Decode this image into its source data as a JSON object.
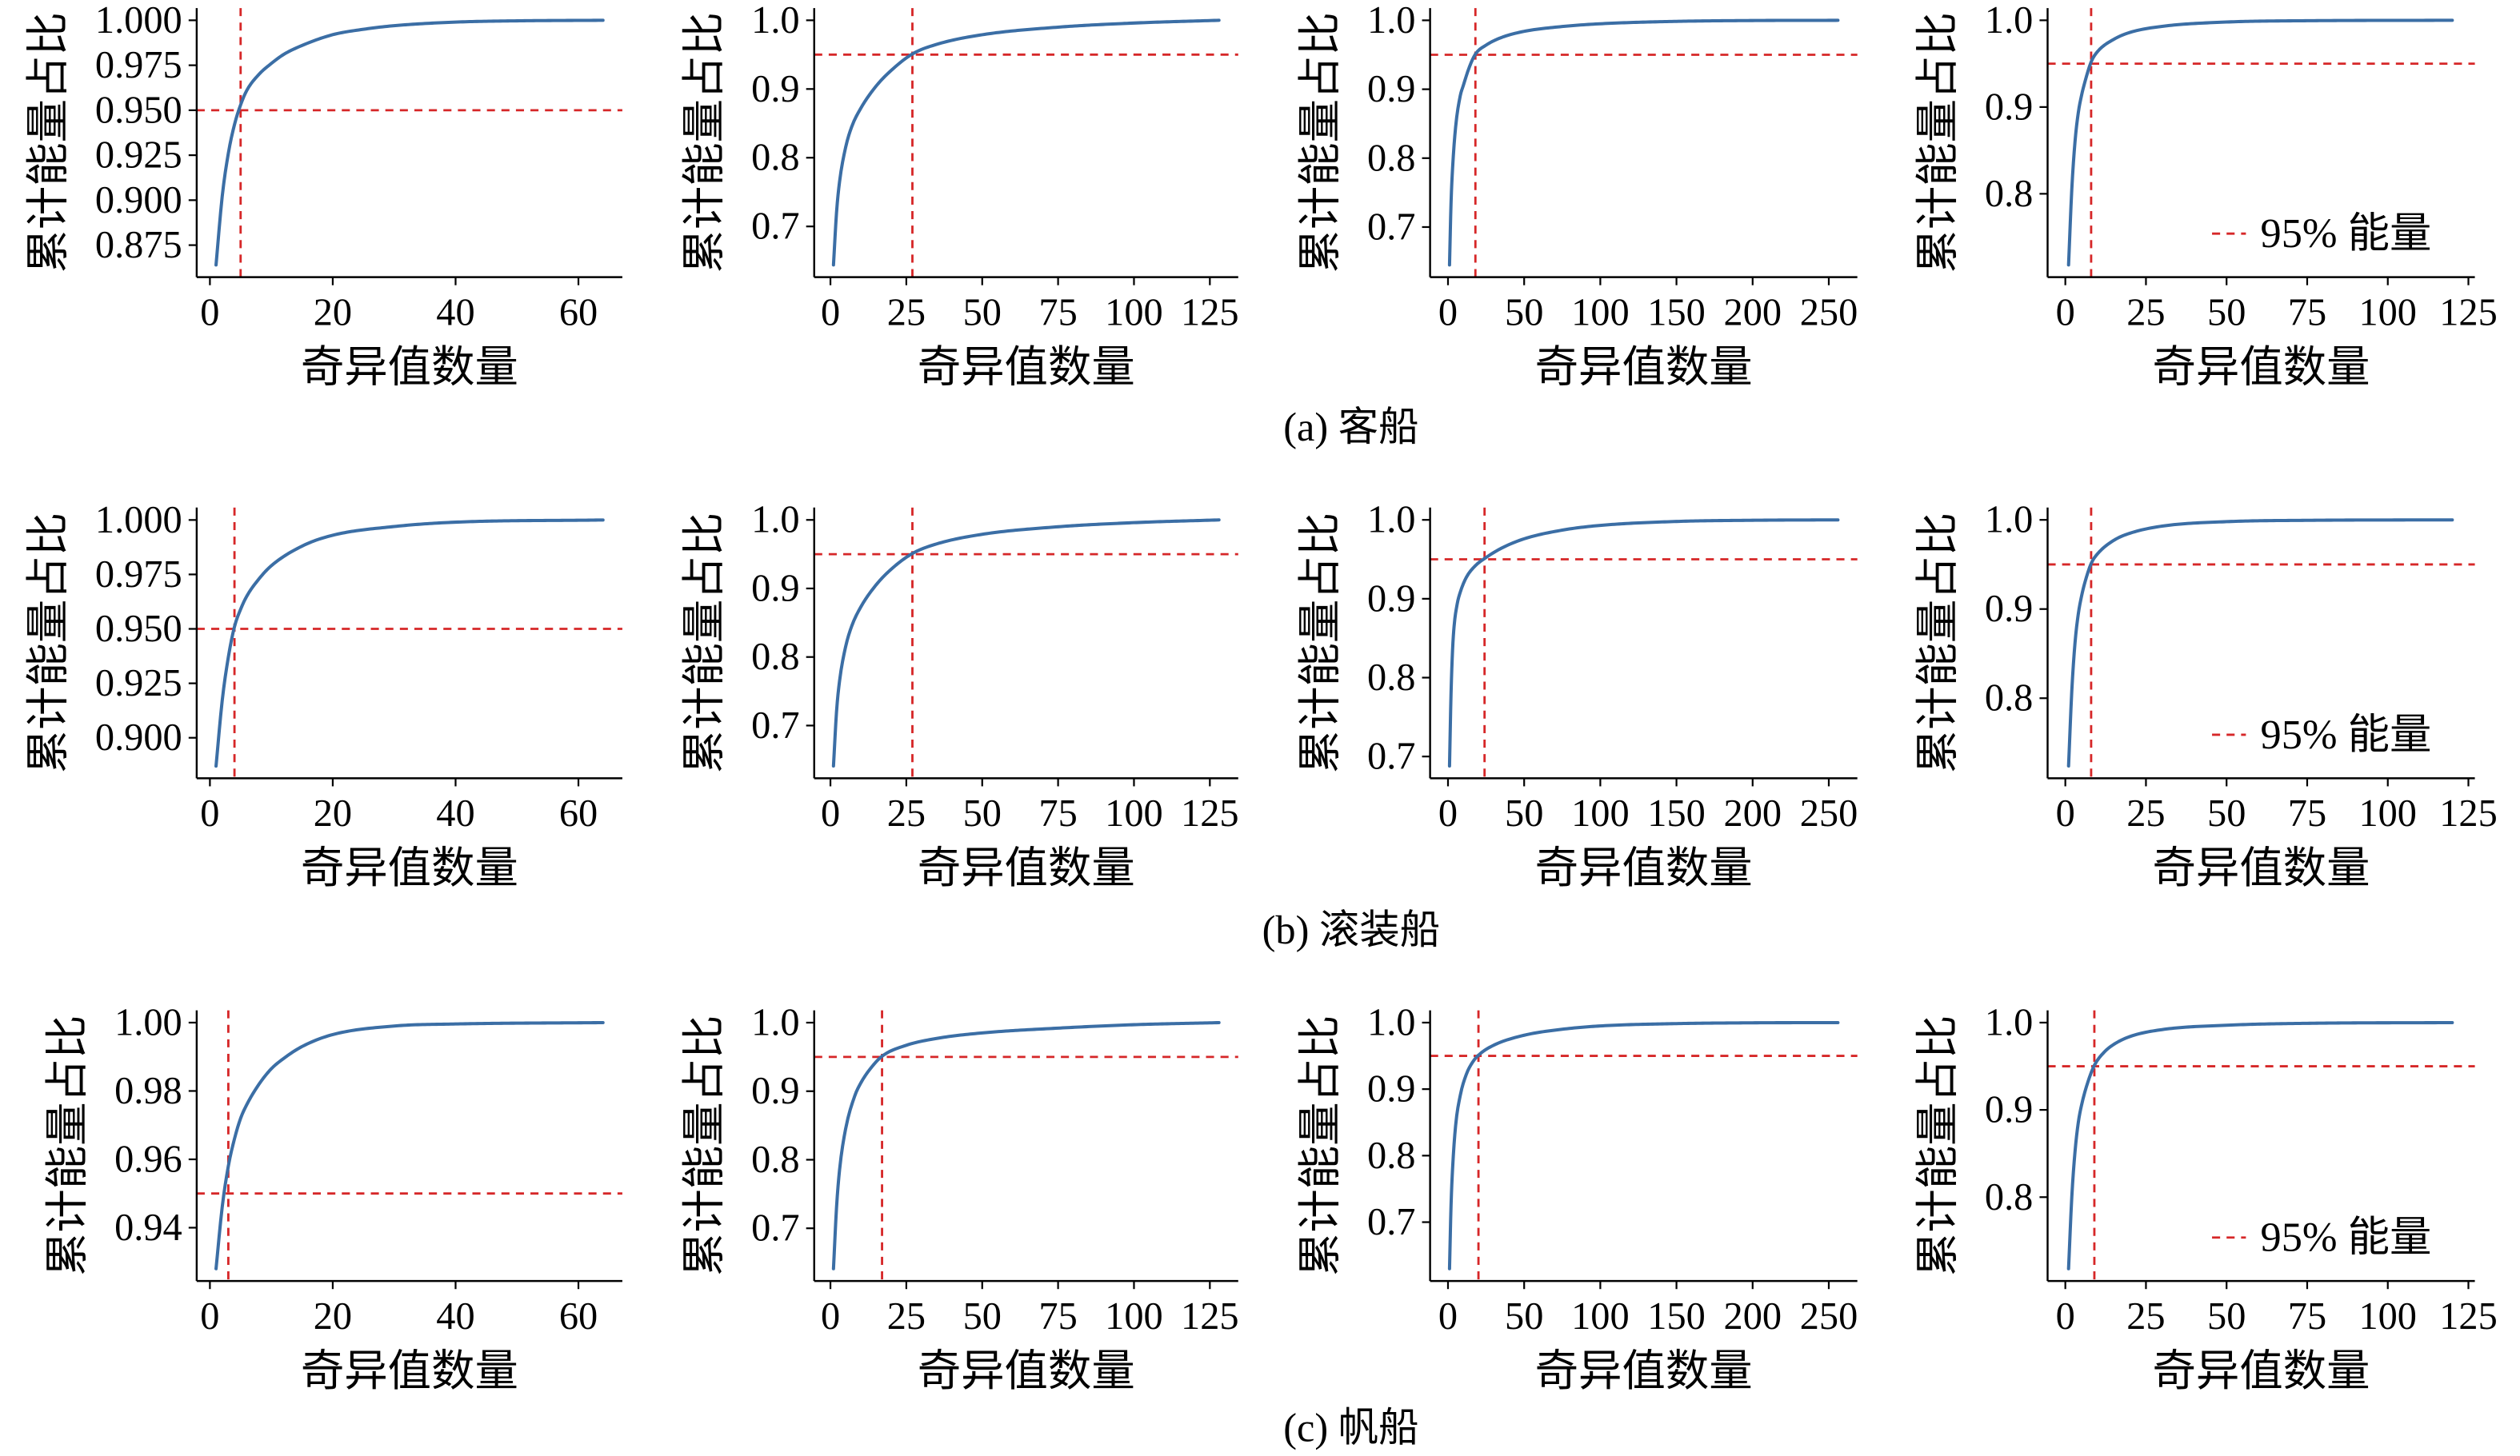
{
  "figure": {
    "captions": [
      "(a) 客船",
      "(b) 滚装船",
      "(c) 帆船"
    ],
    "colors": {
      "curve": "#3b6ea5",
      "reference": "#d62728",
      "axes": "#000000"
    }
  },
  "chart_data": [
    {
      "type": "line",
      "xlabel": "奇异值数量",
      "ylabel": "累计能量占比",
      "xlim": [
        -2.15,
        67.15
      ],
      "ylim": [
        0.8572,
        1.0068
      ],
      "xticks": [
        "0",
        "20",
        "40",
        "60"
      ],
      "yticks": [
        "0.875",
        "0.900",
        "0.925",
        "0.950",
        "0.975",
        "1.000"
      ],
      "series": [
        {
          "x": [
            1,
            2,
            3,
            4,
            5,
            6,
            8,
            10,
            12,
            15,
            20,
            25,
            30,
            40,
            50,
            64
          ],
          "y": [
            0.864,
            0.902,
            0.926,
            0.942,
            0.953,
            0.961,
            0.97,
            0.976,
            0.981,
            0.986,
            0.992,
            0.995,
            0.997,
            0.999,
            0.9997,
            1.0
          ]
        }
      ],
      "reference_lines": {
        "y": 0.95,
        "x": 5
      },
      "grid": false
    },
    {
      "type": "line",
      "xlabel": "奇异值数量",
      "ylabel": "累计能量占比",
      "xlim": [
        -5.35,
        134.35
      ],
      "ylim": [
        0.6262,
        1.0178
      ],
      "xticks": [
        "0",
        "25",
        "50",
        "75",
        "100",
        "125"
      ],
      "yticks": [
        "0.7",
        "0.8",
        "0.9",
        "1.0"
      ],
      "series": [
        {
          "x": [
            1,
            2,
            3,
            5,
            7,
            10,
            15,
            20,
            27,
            35,
            50,
            75,
            100,
            128
          ],
          "y": [
            0.644,
            0.72,
            0.765,
            0.815,
            0.845,
            0.872,
            0.904,
            0.927,
            0.951,
            0.965,
            0.979,
            0.99,
            0.996,
            1.0
          ]
        }
      ],
      "reference_lines": {
        "y": 0.95,
        "x": 27
      },
      "grid": false
    },
    {
      "type": "line",
      "xlabel": "奇异值数量",
      "ylabel": "累计能量占比",
      "xlim": [
        -11.75,
        268.75
      ],
      "ylim": [
        0.6273,
        1.0178
      ],
      "xticks": [
        "0",
        "50",
        "100",
        "150",
        "200",
        "250"
      ],
      "yticks": [
        "0.7",
        "0.8",
        "0.9",
        "1.0"
      ],
      "series": [
        {
          "x": [
            1,
            2,
            3,
            5,
            8,
            10,
            14,
            18,
            25,
            35,
            50,
            75,
            100,
            150,
            200,
            256
          ],
          "y": [
            0.645,
            0.735,
            0.785,
            0.845,
            0.89,
            0.905,
            0.932,
            0.951,
            0.964,
            0.975,
            0.984,
            0.991,
            0.995,
            0.9985,
            0.9997,
            1.0
          ]
        }
      ],
      "reference_lines": {
        "y": 0.95,
        "x": 18
      },
      "grid": false
    },
    {
      "type": "line",
      "xlabel": "奇异值数量",
      "ylabel": "累计能量占比",
      "xlim": [
        -5.5,
        127
      ],
      "ylim": [
        0.7039,
        1.0141
      ],
      "xticks": [
        "0",
        "25",
        "50",
        "75",
        "100",
        "125"
      ],
      "yticks": [
        "0.8",
        "0.9",
        "1.0"
      ],
      "series": [
        {
          "x": [
            1,
            2,
            3,
            4,
            5,
            6,
            8,
            10,
            15,
            20,
            30,
            50,
            75,
            120
          ],
          "y": [
            0.718,
            0.805,
            0.86,
            0.893,
            0.913,
            0.928,
            0.952,
            0.964,
            0.978,
            0.986,
            0.993,
            0.998,
            0.9995,
            1.0
          ]
        }
      ],
      "reference_lines": {
        "y": 0.95,
        "x": 8
      },
      "grid": false,
      "legend": {
        "label": "95% 能量",
        "position": "lower-right"
      }
    },
    {
      "type": "line",
      "xlabel": "奇异值数量",
      "ylabel": "累计能量占比",
      "xlim": [
        -2.15,
        67.15
      ],
      "ylim": [
        0.8814,
        1.0057
      ],
      "xticks": [
        "0",
        "20",
        "40",
        "60"
      ],
      "yticks": [
        "0.900",
        "0.925",
        "0.950",
        "0.975",
        "1.000"
      ],
      "series": [
        {
          "x": [
            1,
            2,
            3,
            4,
            5,
            6,
            8,
            10,
            15,
            20,
            30,
            40,
            64
          ],
          "y": [
            0.887,
            0.917,
            0.937,
            0.951,
            0.959,
            0.965,
            0.973,
            0.979,
            0.988,
            0.993,
            0.997,
            0.999,
            1.0
          ]
        }
      ],
      "reference_lines": {
        "y": 0.95,
        "x": 4
      },
      "grid": false
    },
    {
      "type": "line",
      "xlabel": "奇异值数量",
      "ylabel": "累计能量占比",
      "xlim": [
        -5.35,
        134.35
      ],
      "ylim": [
        0.6231,
        1.018
      ],
      "xticks": [
        "0",
        "25",
        "50",
        "75",
        "100",
        "125"
      ],
      "yticks": [
        "0.7",
        "0.8",
        "0.9",
        "1.0"
      ],
      "series": [
        {
          "x": [
            1,
            2,
            3,
            5,
            7,
            10,
            15,
            20,
            27,
            35,
            50,
            75,
            100,
            128
          ],
          "y": [
            0.641,
            0.72,
            0.765,
            0.815,
            0.845,
            0.873,
            0.905,
            0.928,
            0.951,
            0.965,
            0.979,
            0.99,
            0.996,
            1.0
          ]
        }
      ],
      "reference_lines": {
        "y": 0.95,
        "x": 27
      },
      "grid": false
    },
    {
      "type": "line",
      "xlabel": "奇异值数量",
      "ylabel": "累计能量占比",
      "xlim": [
        -11.75,
        268.75
      ],
      "ylim": [
        0.6724,
        1.0156
      ],
      "xticks": [
        "0",
        "50",
        "100",
        "150",
        "200",
        "250"
      ],
      "yticks": [
        "0.7",
        "0.8",
        "0.9",
        "1.0"
      ],
      "series": [
        {
          "x": [
            1,
            2,
            3,
            4,
            6,
            8,
            12,
            18,
            24,
            35,
            50,
            75,
            100,
            150,
            200,
            256
          ],
          "y": [
            0.688,
            0.78,
            0.835,
            0.865,
            0.893,
            0.908,
            0.927,
            0.942,
            0.951,
            0.964,
            0.976,
            0.987,
            0.993,
            0.998,
            0.9995,
            1.0
          ]
        }
      ],
      "reference_lines": {
        "y": 0.95,
        "x": 24
      },
      "grid": false
    },
    {
      "type": "line",
      "xlabel": "奇异值数量",
      "ylabel": "累计能量占比",
      "xlim": [
        -5.5,
        127
      ],
      "ylim": [
        0.7102,
        1.0138
      ],
      "xticks": [
        "0",
        "25",
        "50",
        "75",
        "100",
        "125"
      ],
      "yticks": [
        "0.8",
        "0.9",
        "1.0"
      ],
      "series": [
        {
          "x": [
            1,
            2,
            3,
            4,
            5,
            6,
            8,
            10,
            15,
            20,
            30,
            50,
            75,
            120
          ],
          "y": [
            0.724,
            0.808,
            0.862,
            0.894,
            0.914,
            0.929,
            0.951,
            0.962,
            0.977,
            0.985,
            0.993,
            0.998,
            0.9995,
            1.0
          ]
        }
      ],
      "reference_lines": {
        "y": 0.95,
        "x": 8
      },
      "grid": false,
      "legend": {
        "label": "95% 能量",
        "position": "lower-right"
      }
    },
    {
      "type": "line",
      "xlabel": "奇异值数量",
      "ylabel": "累计能量占比",
      "xlim": [
        -2.15,
        67.15
      ],
      "ylim": [
        0.9244,
        1.0036
      ],
      "xticks": [
        "0",
        "20",
        "40",
        "60"
      ],
      "yticks": [
        "0.94",
        "0.96",
        "0.98",
        "1.00"
      ],
      "series": [
        {
          "x": [
            1,
            2,
            3,
            4,
            5,
            6,
            8,
            10,
            12,
            15,
            20,
            30,
            40,
            64
          ],
          "y": [
            0.928,
            0.946,
            0.958,
            0.966,
            0.972,
            0.976,
            0.982,
            0.9865,
            0.9895,
            0.993,
            0.9965,
            0.999,
            0.9996,
            1.0
          ]
        }
      ],
      "reference_lines": {
        "y": 0.95,
        "x": 3
      },
      "grid": false
    },
    {
      "type": "line",
      "xlabel": "奇异值数量",
      "ylabel": "累计能量占比",
      "xlim": [
        -5.35,
        134.35
      ],
      "ylim": [
        0.6231,
        1.018
      ],
      "xticks": [
        "0",
        "25",
        "50",
        "75",
        "100",
        "125"
      ],
      "yticks": [
        "0.7",
        "0.8",
        "0.9",
        "1.0"
      ],
      "series": [
        {
          "x": [
            1,
            2,
            3,
            5,
            8,
            10,
            13,
            17,
            25,
            35,
            50,
            75,
            100,
            128
          ],
          "y": [
            0.641,
            0.73,
            0.785,
            0.845,
            0.893,
            0.912,
            0.932,
            0.951,
            0.967,
            0.977,
            0.985,
            0.992,
            0.997,
            1.0
          ]
        }
      ],
      "reference_lines": {
        "y": 0.95,
        "x": 17
      },
      "grid": false
    },
    {
      "type": "line",
      "xlabel": "奇异值数量",
      "ylabel": "累计能量占比",
      "xlim": [
        -11.75,
        268.75
      ],
      "ylim": [
        0.6115,
        1.0185
      ],
      "xticks": [
        "0",
        "50",
        "100",
        "150",
        "200",
        "250"
      ],
      "yticks": [
        "0.7",
        "0.8",
        "0.9",
        "1.0"
      ],
      "series": [
        {
          "x": [
            1,
            2,
            3,
            5,
            8,
            12,
            16,
            20,
            30,
            50,
            75,
            100,
            150,
            200,
            256
          ],
          "y": [
            0.63,
            0.725,
            0.78,
            0.845,
            0.89,
            0.922,
            0.94,
            0.951,
            0.966,
            0.981,
            0.99,
            0.995,
            0.9985,
            0.9997,
            1.0
          ]
        }
      ],
      "reference_lines": {
        "y": 0.95,
        "x": 20
      },
      "grid": false
    },
    {
      "type": "line",
      "xlabel": "奇异值数量",
      "ylabel": "累计能量占比",
      "xlim": [
        -5.5,
        127
      ],
      "ylim": [
        0.7039,
        1.0141
      ],
      "xticks": [
        "0",
        "25",
        "50",
        "75",
        "100",
        "125"
      ],
      "yticks": [
        "0.8",
        "0.9",
        "1.0"
      ],
      "series": [
        {
          "x": [
            1,
            2,
            3,
            4,
            5,
            7,
            9,
            12,
            15,
            20,
            30,
            50,
            75,
            120
          ],
          "y": [
            0.718,
            0.8,
            0.852,
            0.885,
            0.905,
            0.932,
            0.951,
            0.966,
            0.975,
            0.984,
            0.992,
            0.997,
            0.9992,
            1.0
          ]
        }
      ],
      "reference_lines": {
        "y": 0.95,
        "x": 9
      },
      "grid": false,
      "legend": {
        "label": "95% 能量",
        "position": "lower-right"
      }
    }
  ]
}
